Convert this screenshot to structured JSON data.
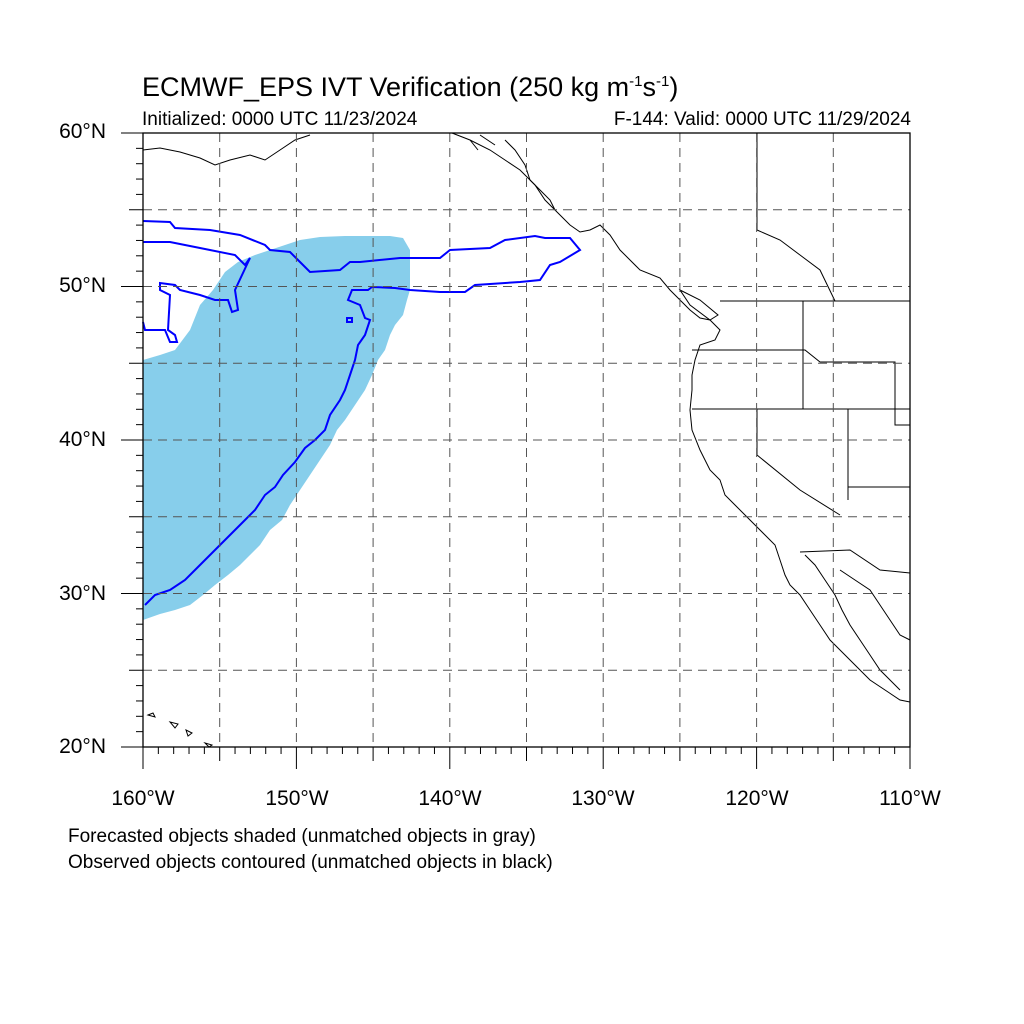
{
  "title": {
    "main": "ECMWF_EPS IVT Verification (250 kg m",
    "sup1": "-1",
    "mid": "s",
    "sup2": "-1",
    "end": ")"
  },
  "initialized": "Initialized: 0000 UTC 11/23/2024",
  "valid": "F-144: Valid: 0000 UTC 11/29/2024",
  "notes": [
    "Forecasted objects shaded (unmatched objects in gray)",
    "Observed objects contoured (unmatched objects in black)"
  ],
  "map": {
    "lon_range": [
      -160,
      -110
    ],
    "lat_range": [
      20,
      60
    ],
    "y_tick_labels": [
      "60°N",
      "50°N",
      "40°N",
      "30°N",
      "20°N"
    ],
    "x_tick_labels": [
      "160°W",
      "150°W",
      "140°W",
      "130°W",
      "120°W",
      "110°W"
    ],
    "grid_spacing_deg": 5,
    "forecast_fill_color": "#87ceeb",
    "observed_contour_color": "#0000ff",
    "coastline_color": "#000000"
  }
}
